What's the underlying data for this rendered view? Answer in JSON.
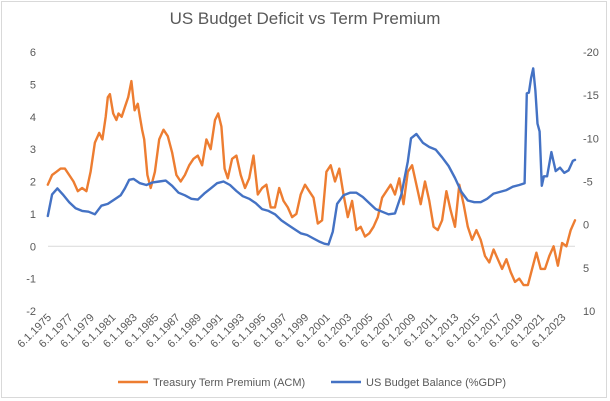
{
  "chart_data": {
    "type": "line",
    "title": "US Budget Deficit vs Term Premium",
    "xlabel": "",
    "ylabel_left": "",
    "ylabel_right": "",
    "x_start": 1975.42,
    "x_end": 2024.6,
    "y_left_lim": [
      -2,
      6
    ],
    "y_left_ticks": [
      "-2",
      "-1",
      "0",
      "1",
      "2",
      "3",
      "4",
      "5",
      "6"
    ],
    "y_right_lim": [
      10,
      -20
    ],
    "y_right_ticks": [
      "10",
      "5",
      "0",
      "-5",
      "-10",
      "-15",
      "-20"
    ],
    "x_tick_labels": [
      "6.1.1975",
      "6.1.1977",
      "6.1.1979",
      "6.1.1981",
      "6.1.1983",
      "6.1.1985",
      "6.1.1987",
      "6.1.1989",
      "6.1.1991",
      "6.1.1993",
      "6.1.1995",
      "6.1.1997",
      "6.1.1999",
      "6.1.2001",
      "6.1.2003",
      "6.1.2005",
      "6.1.2007",
      "6.1.2009",
      "6.1.2011",
      "6.1.2013",
      "6.1.2015",
      "6.1.2017",
      "6.1.2019",
      "6.1.2021",
      "6.1.2023"
    ],
    "gridlines": false,
    "legend_position": "bottom",
    "series": [
      {
        "name": "Treasury Term Premium (ACM)",
        "color": "#ED7D31",
        "axis": "left",
        "x": [
          1975.4,
          1975.8,
          1976.2,
          1976.6,
          1977.0,
          1977.4,
          1977.8,
          1978.2,
          1978.6,
          1979.0,
          1979.4,
          1979.8,
          1980.2,
          1980.5,
          1980.8,
          1981.0,
          1981.2,
          1981.5,
          1981.8,
          1982.0,
          1982.3,
          1982.6,
          1982.9,
          1983.2,
          1983.5,
          1983.8,
          1984.0,
          1984.2,
          1984.4,
          1984.7,
          1985.0,
          1985.4,
          1985.8,
          1986.2,
          1986.6,
          1987.0,
          1987.4,
          1987.8,
          1988.2,
          1988.6,
          1989.0,
          1989.4,
          1989.8,
          1990.2,
          1990.6,
          1991.0,
          1991.3,
          1991.6,
          1991.9,
          1992.2,
          1992.6,
          1993.0,
          1993.4,
          1993.8,
          1994.2,
          1994.6,
          1995.0,
          1995.4,
          1995.8,
          1996.2,
          1996.6,
          1997.0,
          1997.4,
          1997.8,
          1998.2,
          1998.6,
          1999.0,
          1999.4,
          1999.8,
          2000.2,
          2000.6,
          2001.0,
          2001.4,
          2001.8,
          2002.2,
          2002.6,
          2003.0,
          2003.4,
          2003.8,
          2004.2,
          2004.6,
          2005.0,
          2005.4,
          2005.8,
          2006.2,
          2006.6,
          2007.0,
          2007.4,
          2007.8,
          2008.2,
          2008.6,
          2009.0,
          2009.4,
          2009.8,
          2010.2,
          2010.6,
          2011.0,
          2011.4,
          2011.8,
          2012.2,
          2012.6,
          2013.0,
          2013.4,
          2013.8,
          2014.2,
          2014.6,
          2015.0,
          2015.4,
          2015.8,
          2016.2,
          2016.6,
          2017.0,
          2017.4,
          2017.8,
          2018.2,
          2018.6,
          2019.0,
          2019.4,
          2019.8,
          2020.2,
          2020.6,
          2021.0,
          2021.4,
          2021.8,
          2022.2,
          2022.6,
          2023.0,
          2023.4,
          2023.8,
          2024.2,
          2024.6
        ],
        "y": [
          1.9,
          2.2,
          2.3,
          2.4,
          2.4,
          2.2,
          2.0,
          1.7,
          1.8,
          1.7,
          2.3,
          3.2,
          3.5,
          3.3,
          4.0,
          4.6,
          4.7,
          4.1,
          3.9,
          4.1,
          4.0,
          4.3,
          4.6,
          5.1,
          4.2,
          4.4,
          4.0,
          3.6,
          3.3,
          2.2,
          1.8,
          2.3,
          3.3,
          3.6,
          3.4,
          2.9,
          2.2,
          2.0,
          2.2,
          2.5,
          2.7,
          2.8,
          2.5,
          3.3,
          3.0,
          3.9,
          4.1,
          3.7,
          2.4,
          2.1,
          2.7,
          2.8,
          2.2,
          1.8,
          2.1,
          2.8,
          1.6,
          1.8,
          1.9,
          1.2,
          1.2,
          1.8,
          1.4,
          1.2,
          0.9,
          1.0,
          1.6,
          1.9,
          1.7,
          1.5,
          0.7,
          0.8,
          2.3,
          2.5,
          2.0,
          2.4,
          1.6,
          0.9,
          1.4,
          0.5,
          0.6,
          0.3,
          0.4,
          0.6,
          0.9,
          1.5,
          1.7,
          1.9,
          1.6,
          2.1,
          1.3,
          2.3,
          2.5,
          1.9,
          1.3,
          2.0,
          1.4,
          0.6,
          0.5,
          0.8,
          1.7,
          1.1,
          0.6,
          1.9,
          1.3,
          0.6,
          0.2,
          0.5,
          0.2,
          -0.3,
          -0.5,
          -0.1,
          -0.4,
          -0.7,
          -0.4,
          -0.8,
          -1.1,
          -1.0,
          -1.2,
          -1.2,
          -0.7,
          -0.2,
          -0.7,
          -0.7,
          -0.3,
          0.0,
          -0.6,
          0.1,
          0.0,
          0.5,
          0.8
        ]
      },
      {
        "name": "US Budget Balance (%GDP)",
        "color": "#4472C4",
        "axis": "right",
        "x": [
          1975.4,
          1975.8,
          1976.3,
          1976.8,
          1977.4,
          1978.0,
          1978.6,
          1979.2,
          1979.8,
          1980.4,
          1981.0,
          1981.6,
          1982.2,
          1982.6,
          1983.0,
          1983.4,
          1984.0,
          1984.6,
          1985.2,
          1985.8,
          1986.4,
          1987.0,
          1987.6,
          1988.2,
          1988.8,
          1989.4,
          1990.0,
          1990.6,
          1991.2,
          1991.8,
          1992.4,
          1993.0,
          1993.6,
          1994.2,
          1994.8,
          1995.4,
          1996.0,
          1996.6,
          1997.2,
          1997.8,
          1998.4,
          1999.0,
          1999.6,
          2000.2,
          2000.8,
          2001.2,
          2001.6,
          2002.0,
          2002.4,
          2003.0,
          2003.6,
          2004.2,
          2004.8,
          2005.4,
          2006.0,
          2006.6,
          2007.2,
          2007.8,
          2008.4,
          2009.0,
          2009.3,
          2009.8,
          2010.4,
          2011.0,
          2011.6,
          2012.2,
          2012.8,
          2013.4,
          2014.0,
          2014.6,
          2015.2,
          2015.8,
          2016.4,
          2017.0,
          2017.6,
          2018.2,
          2018.8,
          2019.4,
          2019.9,
          2020.1,
          2020.3,
          2020.5,
          2020.7,
          2020.9,
          2021.1,
          2021.3,
          2021.5,
          2021.7,
          2022.0,
          2022.4,
          2022.8,
          2023.2,
          2023.6,
          2024.0,
          2024.4,
          2024.6
        ],
        "y": [
          -1.0,
          -3.5,
          -4.2,
          -3.5,
          -2.6,
          -1.9,
          -1.6,
          -1.5,
          -1.2,
          -2.2,
          -2.4,
          -2.9,
          -3.4,
          -4.2,
          -5.2,
          -5.3,
          -4.8,
          -4.6,
          -4.9,
          -5.0,
          -5.1,
          -4.5,
          -3.7,
          -3.4,
          -3.0,
          -2.9,
          -3.6,
          -4.2,
          -4.8,
          -5.0,
          -4.6,
          -3.9,
          -3.3,
          -3.0,
          -2.5,
          -1.8,
          -1.6,
          -1.2,
          -0.5,
          0.0,
          0.5,
          1.0,
          1.2,
          1.6,
          2.0,
          2.2,
          2.3,
          0.8,
          -2.4,
          -3.4,
          -3.7,
          -3.7,
          -3.2,
          -2.5,
          -1.8,
          -1.5,
          -1.2,
          -1.3,
          -3.5,
          -7.3,
          -10.0,
          -10.5,
          -9.5,
          -9.0,
          -8.7,
          -7.8,
          -6.8,
          -5.4,
          -3.8,
          -2.8,
          -2.6,
          -2.6,
          -3.0,
          -3.6,
          -3.8,
          -4.0,
          -4.4,
          -4.6,
          -4.8,
          -15.2,
          -15.3,
          -17.0,
          -18.1,
          -15.5,
          -11.7,
          -10.8,
          -4.5,
          -5.6,
          -5.6,
          -8.4,
          -6.2,
          -6.6,
          -6.0,
          -6.3,
          -7.4,
          -7.5
        ]
      }
    ]
  },
  "legend": [
    {
      "label": "Treasury Term Premium (ACM)",
      "color": "#ED7D31"
    },
    {
      "label": "US Budget Balance (%GDP)",
      "color": "#4472C4"
    }
  ]
}
